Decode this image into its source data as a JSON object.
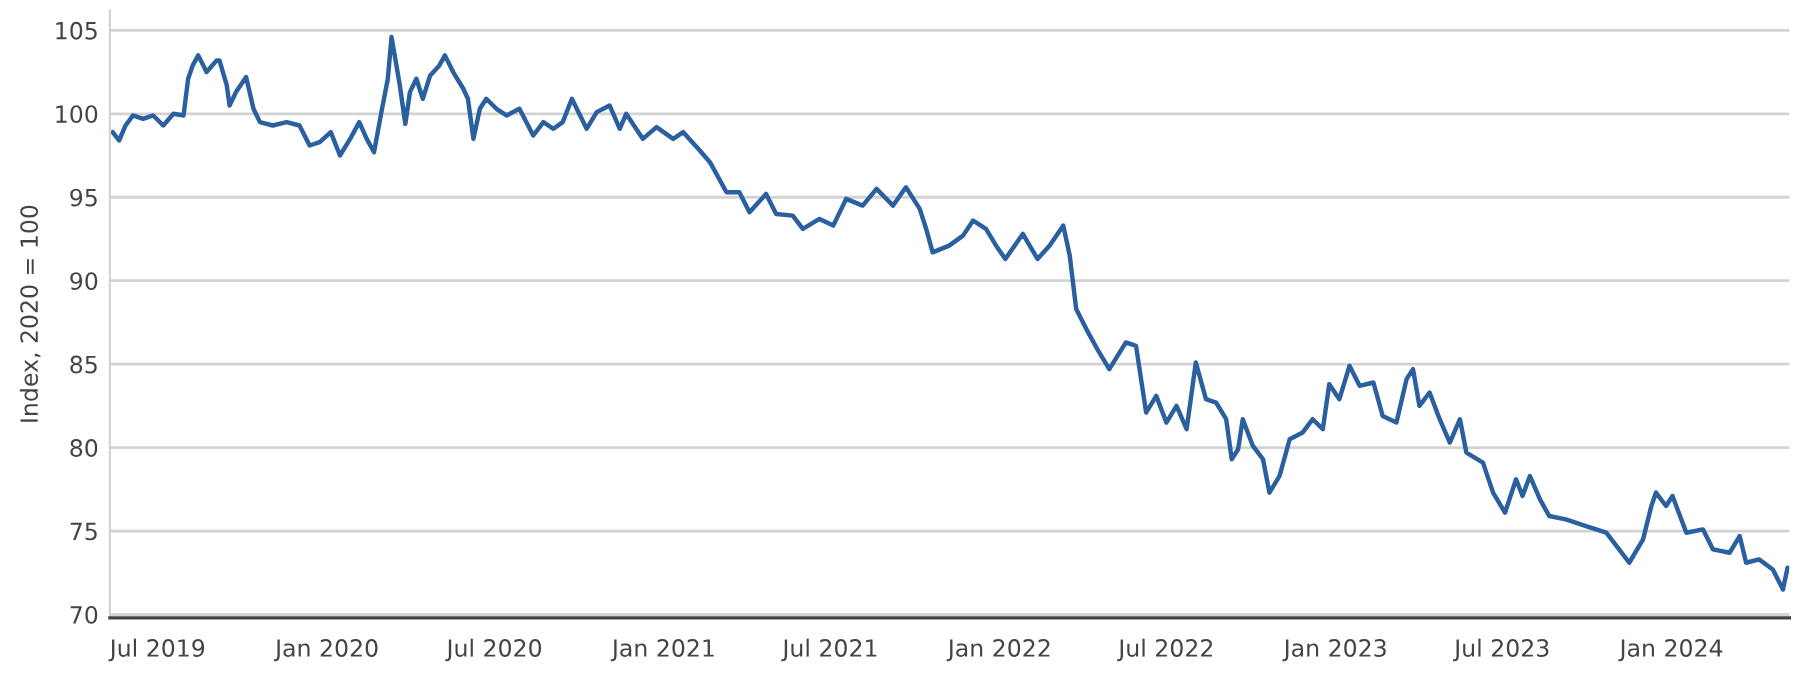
{
  "chart_data": {
    "type": "line",
    "ylabel": "Index, 2020 = 100",
    "xlim": [
      "2019-05-10",
      "2024-05-08"
    ],
    "ylim": [
      69.8,
      106.2
    ],
    "yticks": [
      70,
      75,
      80,
      85,
      90,
      95,
      100,
      105
    ],
    "xticks": [
      {
        "value": "2019-07-01",
        "label": "Jul 2019"
      },
      {
        "value": "2020-01-01",
        "label": "Jan 2020"
      },
      {
        "value": "2020-07-01",
        "label": "Jul 2020"
      },
      {
        "value": "2021-01-01",
        "label": "Jan 2021"
      },
      {
        "value": "2021-07-01",
        "label": "Jul 2021"
      },
      {
        "value": "2022-01-01",
        "label": "Jan 2022"
      },
      {
        "value": "2022-07-01",
        "label": "Jul 2022"
      },
      {
        "value": "2023-01-01",
        "label": "Jan 2023"
      },
      {
        "value": "2023-07-01",
        "label": "Jul 2023"
      },
      {
        "value": "2024-01-01",
        "label": "Jan 2024"
      }
    ],
    "grid": "y",
    "legend": false,
    "line_style": "solid",
    "marker": "none",
    "x": [
      "2019-05-13",
      "2019-05-20",
      "2019-05-27",
      "2019-06-04",
      "2019-06-15",
      "2019-06-26",
      "2019-07-07",
      "2019-07-18",
      "2019-07-29",
      "2019-08-03",
      "2019-08-08",
      "2019-08-14",
      "2019-08-23",
      "2019-09-03",
      "2019-09-06",
      "2019-09-14",
      "2019-09-17",
      "2019-09-24",
      "2019-10-05",
      "2019-10-13",
      "2019-10-20",
      "2019-11-03",
      "2019-11-18",
      "2019-12-02",
      "2019-12-13",
      "2019-12-24",
      "2020-01-05",
      "2020-01-15",
      "2020-01-26",
      "2020-02-05",
      "2020-02-13",
      "2020-02-21",
      "2020-02-29",
      "2020-03-07",
      "2020-03-11",
      "2020-03-16",
      "2020-03-20",
      "2020-03-26",
      "2020-03-31",
      "2020-04-07",
      "2020-04-14",
      "2020-04-22",
      "2020-05-02",
      "2020-05-08",
      "2020-05-17",
      "2020-05-28",
      "2020-06-02",
      "2020-06-08",
      "2020-06-15",
      "2020-06-22",
      "2020-07-03",
      "2020-07-14",
      "2020-07-28",
      "2020-08-12",
      "2020-08-23",
      "2020-09-03",
      "2020-09-13",
      "2020-09-23",
      "2020-10-09",
      "2020-10-20",
      "2020-11-03",
      "2020-11-14",
      "2020-11-21",
      "2020-12-09",
      "2020-12-24",
      "2021-01-11",
      "2021-01-22",
      "2021-02-09",
      "2021-02-20",
      "2021-03-10",
      "2021-03-24",
      "2021-04-04",
      "2021-04-22",
      "2021-05-03",
      "2021-05-21",
      "2021-06-01",
      "2021-06-19",
      "2021-07-04",
      "2021-07-18",
      "2021-08-05",
      "2021-08-20",
      "2021-09-07",
      "2021-09-21",
      "2021-10-06",
      "2021-10-13",
      "2021-10-20",
      "2021-11-07",
      "2021-11-22",
      "2021-12-03",
      "2021-12-17",
      "2021-12-28",
      "2022-01-07",
      "2022-01-26",
      "2022-02-11",
      "2022-02-24",
      "2022-03-11",
      "2022-03-18",
      "2022-03-25",
      "2022-04-05",
      "2022-04-19",
      "2022-04-30",
      "2022-05-18",
      "2022-05-29",
      "2022-06-09",
      "2022-06-20",
      "2022-07-01",
      "2022-07-12",
      "2022-07-23",
      "2022-08-02",
      "2022-08-13",
      "2022-08-24",
      "2022-09-04",
      "2022-09-10",
      "2022-09-17",
      "2022-09-22",
      "2022-10-03",
      "2022-10-14",
      "2022-10-21",
      "2022-11-01",
      "2022-11-12",
      "2022-11-26",
      "2022-12-07",
      "2022-12-18",
      "2022-12-25",
      "2023-01-05",
      "2023-01-16",
      "2023-01-27",
      "2023-02-11",
      "2023-02-21",
      "2023-03-08",
      "2023-03-19",
      "2023-03-26",
      "2023-04-02",
      "2023-04-13",
      "2023-04-24",
      "2023-05-05",
      "2023-05-16",
      "2023-05-23",
      "2023-06-10",
      "2023-06-21",
      "2023-07-04",
      "2023-07-16",
      "2023-07-23",
      "2023-07-31",
      "2023-08-11",
      "2023-08-21",
      "2023-09-08",
      "2023-09-30",
      "2023-10-22",
      "2023-11-05",
      "2023-11-16",
      "2023-12-01",
      "2023-12-10",
      "2023-12-15",
      "2023-12-26",
      "2024-01-02",
      "2024-01-17",
      "2024-02-04",
      "2024-02-15",
      "2024-03-04",
      "2024-03-15",
      "2024-03-22",
      "2024-04-05",
      "2024-04-20",
      "2024-05-01",
      "2024-05-06"
    ],
    "series": [
      {
        "color": "#2a5fa0",
        "values": [
          98.9,
          98.4,
          99.3,
          99.9,
          99.7,
          99.9,
          99.3,
          100.0,
          99.9,
          102.1,
          102.9,
          103.5,
          102.5,
          103.2,
          103.2,
          101.7,
          100.5,
          101.3,
          102.2,
          100.3,
          99.5,
          99.3,
          99.5,
          99.3,
          98.1,
          98.3,
          98.9,
          97.5,
          98.5,
          99.5,
          98.5,
          97.7,
          100.1,
          102.1,
          104.6,
          103.0,
          101.7,
          99.4,
          101.3,
          102.1,
          100.9,
          102.3,
          102.9,
          103.5,
          102.5,
          101.5,
          100.9,
          98.5,
          100.3,
          100.9,
          100.3,
          99.9,
          100.3,
          98.7,
          99.5,
          99.1,
          99.5,
          100.9,
          99.1,
          100.1,
          100.5,
          99.1,
          100.0,
          98.5,
          99.2,
          98.5,
          98.9,
          97.8,
          97.1,
          95.3,
          95.3,
          94.1,
          95.2,
          94.0,
          93.9,
          93.1,
          93.7,
          93.3,
          94.9,
          94.5,
          95.5,
          94.5,
          95.6,
          94.3,
          93.1,
          91.7,
          92.1,
          92.7,
          93.6,
          93.1,
          92.1,
          91.3,
          92.8,
          91.3,
          92.1,
          93.3,
          91.5,
          88.3,
          87.1,
          85.7,
          84.7,
          86.3,
          86.1,
          82.1,
          83.1,
          81.5,
          82.5,
          81.1,
          85.1,
          82.9,
          82.7,
          81.7,
          79.3,
          79.9,
          81.7,
          80.1,
          79.3,
          77.3,
          78.3,
          80.5,
          80.9,
          81.7,
          81.1,
          83.8,
          82.9,
          84.9,
          83.7,
          83.9,
          81.9,
          81.5,
          84.1,
          84.7,
          82.5,
          83.3,
          81.7,
          80.3,
          81.7,
          79.7,
          79.1,
          77.3,
          76.1,
          78.1,
          77.1,
          78.3,
          76.9,
          75.9,
          75.7,
          75.3,
          74.9,
          73.9,
          73.1,
          74.5,
          76.5,
          77.3,
          76.5,
          77.1,
          74.9,
          75.1,
          73.9,
          73.7,
          74.7,
          73.1,
          73.3,
          72.7,
          71.5,
          72.8
        ]
      }
    ]
  }
}
